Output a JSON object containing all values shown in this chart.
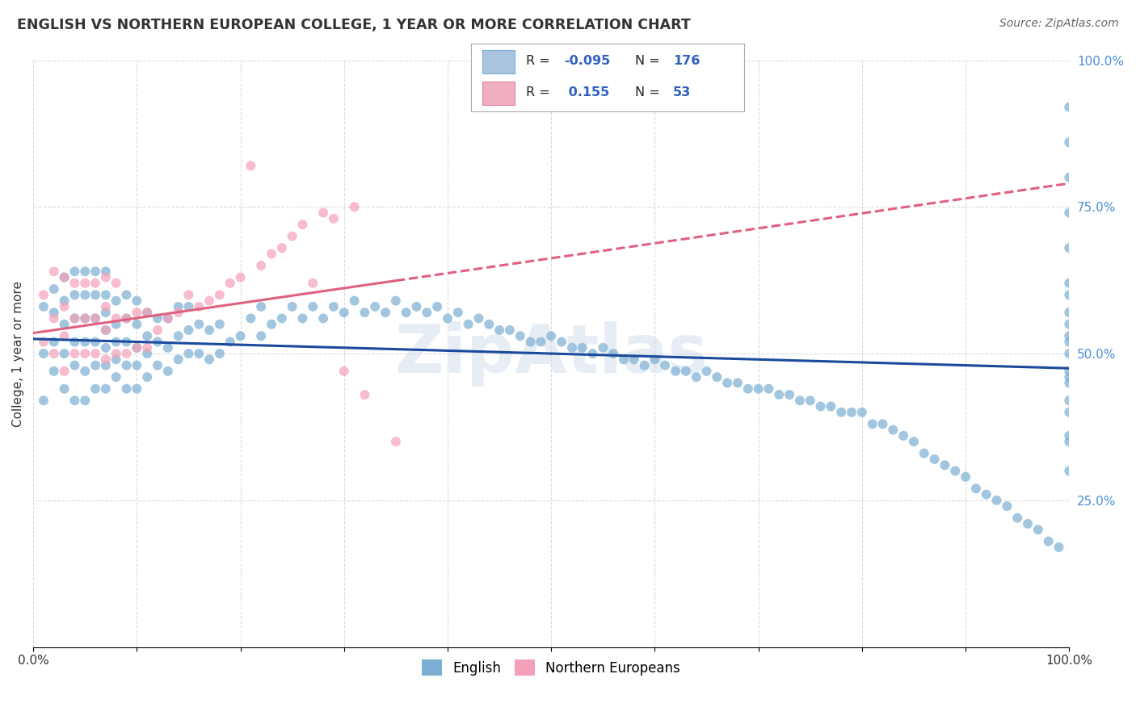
{
  "title": "ENGLISH VS NORTHERN EUROPEAN COLLEGE, 1 YEAR OR MORE CORRELATION CHART",
  "source": "Source: ZipAtlas.com",
  "ylabel": "College, 1 year or more",
  "xlim": [
    0.0,
    1.0
  ],
  "ylim": [
    0.0,
    1.0
  ],
  "english_color": "#7bafd4",
  "northern_color": "#f4a0b8",
  "english_line_color": "#1a4a9c",
  "northern_line_color": "#e06080",
  "background_color": "#ffffff",
  "grid_color": "#cccccc",
  "R_english": -0.095,
  "N_english": 176,
  "R_northern": 0.155,
  "N_northern": 53,
  "eng_line_x0": 0.0,
  "eng_line_y0": 0.525,
  "eng_line_x1": 1.0,
  "eng_line_y1": 0.475,
  "nor_line_x0": 0.0,
  "nor_line_y0": 0.535,
  "nor_line_x1": 1.0,
  "nor_line_y1": 0.79,
  "nor_line_solid_end": 0.35,
  "english_scatter_x": [
    0.01,
    0.01,
    0.01,
    0.02,
    0.02,
    0.02,
    0.02,
    0.03,
    0.03,
    0.03,
    0.03,
    0.03,
    0.04,
    0.04,
    0.04,
    0.04,
    0.04,
    0.04,
    0.05,
    0.05,
    0.05,
    0.05,
    0.05,
    0.05,
    0.06,
    0.06,
    0.06,
    0.06,
    0.06,
    0.06,
    0.07,
    0.07,
    0.07,
    0.07,
    0.07,
    0.07,
    0.07,
    0.08,
    0.08,
    0.08,
    0.08,
    0.08,
    0.09,
    0.09,
    0.09,
    0.09,
    0.09,
    0.1,
    0.1,
    0.1,
    0.1,
    0.1,
    0.11,
    0.11,
    0.11,
    0.11,
    0.12,
    0.12,
    0.12,
    0.13,
    0.13,
    0.13,
    0.14,
    0.14,
    0.14,
    0.15,
    0.15,
    0.15,
    0.16,
    0.16,
    0.17,
    0.17,
    0.18,
    0.18,
    0.19,
    0.2,
    0.21,
    0.22,
    0.22,
    0.23,
    0.24,
    0.25,
    0.26,
    0.27,
    0.28,
    0.29,
    0.3,
    0.31,
    0.32,
    0.33,
    0.34,
    0.35,
    0.36,
    0.37,
    0.38,
    0.39,
    0.4,
    0.41,
    0.42,
    0.43,
    0.44,
    0.45,
    0.46,
    0.47,
    0.48,
    0.49,
    0.5,
    0.51,
    0.52,
    0.53,
    0.54,
    0.55,
    0.56,
    0.57,
    0.58,
    0.59,
    0.6,
    0.61,
    0.62,
    0.63,
    0.64,
    0.65,
    0.66,
    0.67,
    0.68,
    0.69,
    0.7,
    0.71,
    0.72,
    0.73,
    0.74,
    0.75,
    0.76,
    0.77,
    0.78,
    0.79,
    0.8,
    0.81,
    0.82,
    0.83,
    0.84,
    0.85,
    0.86,
    0.87,
    0.88,
    0.89,
    0.9,
    0.91,
    0.92,
    0.93,
    0.94,
    0.95,
    0.96,
    0.97,
    0.98,
    0.99,
    1.0,
    1.0,
    1.0,
    1.0,
    1.0,
    1.0,
    1.0,
    1.0,
    1.0,
    1.0,
    1.0,
    1.0,
    1.0,
    1.0,
    1.0,
    1.0,
    1.0,
    1.0,
    1.0,
    1.0
  ],
  "english_scatter_y": [
    0.42,
    0.5,
    0.58,
    0.47,
    0.52,
    0.57,
    0.61,
    0.44,
    0.5,
    0.55,
    0.59,
    0.63,
    0.42,
    0.48,
    0.52,
    0.56,
    0.6,
    0.64,
    0.42,
    0.47,
    0.52,
    0.56,
    0.6,
    0.64,
    0.44,
    0.48,
    0.52,
    0.56,
    0.6,
    0.64,
    0.44,
    0.48,
    0.51,
    0.54,
    0.57,
    0.6,
    0.64,
    0.46,
    0.49,
    0.52,
    0.55,
    0.59,
    0.44,
    0.48,
    0.52,
    0.56,
    0.6,
    0.44,
    0.48,
    0.51,
    0.55,
    0.59,
    0.46,
    0.5,
    0.53,
    0.57,
    0.48,
    0.52,
    0.56,
    0.47,
    0.51,
    0.56,
    0.49,
    0.53,
    0.58,
    0.5,
    0.54,
    0.58,
    0.5,
    0.55,
    0.49,
    0.54,
    0.5,
    0.55,
    0.52,
    0.53,
    0.56,
    0.53,
    0.58,
    0.55,
    0.56,
    0.58,
    0.56,
    0.58,
    0.56,
    0.58,
    0.57,
    0.59,
    0.57,
    0.58,
    0.57,
    0.59,
    0.57,
    0.58,
    0.57,
    0.58,
    0.56,
    0.57,
    0.55,
    0.56,
    0.55,
    0.54,
    0.54,
    0.53,
    0.52,
    0.52,
    0.53,
    0.52,
    0.51,
    0.51,
    0.5,
    0.51,
    0.5,
    0.49,
    0.49,
    0.48,
    0.49,
    0.48,
    0.47,
    0.47,
    0.46,
    0.47,
    0.46,
    0.45,
    0.45,
    0.44,
    0.44,
    0.44,
    0.43,
    0.43,
    0.42,
    0.42,
    0.41,
    0.41,
    0.4,
    0.4,
    0.4,
    0.38,
    0.38,
    0.37,
    0.36,
    0.35,
    0.33,
    0.32,
    0.31,
    0.3,
    0.29,
    0.27,
    0.26,
    0.25,
    0.24,
    0.22,
    0.21,
    0.2,
    0.18,
    0.17,
    0.55,
    0.62,
    0.68,
    0.74,
    0.8,
    0.86,
    0.92,
    0.5,
    0.45,
    0.4,
    0.35,
    0.52,
    0.46,
    0.42,
    0.36,
    0.3,
    0.57,
    0.53,
    0.47,
    0.6
  ],
  "northern_scatter_x": [
    0.01,
    0.01,
    0.02,
    0.02,
    0.02,
    0.03,
    0.03,
    0.03,
    0.03,
    0.04,
    0.04,
    0.04,
    0.05,
    0.05,
    0.05,
    0.06,
    0.06,
    0.06,
    0.07,
    0.07,
    0.07,
    0.07,
    0.08,
    0.08,
    0.08,
    0.09,
    0.09,
    0.1,
    0.1,
    0.11,
    0.11,
    0.12,
    0.13,
    0.14,
    0.15,
    0.16,
    0.17,
    0.18,
    0.19,
    0.2,
    0.21,
    0.22,
    0.23,
    0.24,
    0.25,
    0.26,
    0.27,
    0.28,
    0.29,
    0.3,
    0.31,
    0.32,
    0.35
  ],
  "northern_scatter_y": [
    0.52,
    0.6,
    0.5,
    0.56,
    0.64,
    0.47,
    0.53,
    0.58,
    0.63,
    0.5,
    0.56,
    0.62,
    0.5,
    0.56,
    0.62,
    0.5,
    0.56,
    0.62,
    0.49,
    0.54,
    0.58,
    0.63,
    0.5,
    0.56,
    0.62,
    0.5,
    0.56,
    0.51,
    0.57,
    0.51,
    0.57,
    0.54,
    0.56,
    0.57,
    0.6,
    0.58,
    0.59,
    0.6,
    0.62,
    0.63,
    0.82,
    0.65,
    0.67,
    0.68,
    0.7,
    0.72,
    0.62,
    0.74,
    0.73,
    0.47,
    0.75,
    0.43,
    0.35
  ]
}
